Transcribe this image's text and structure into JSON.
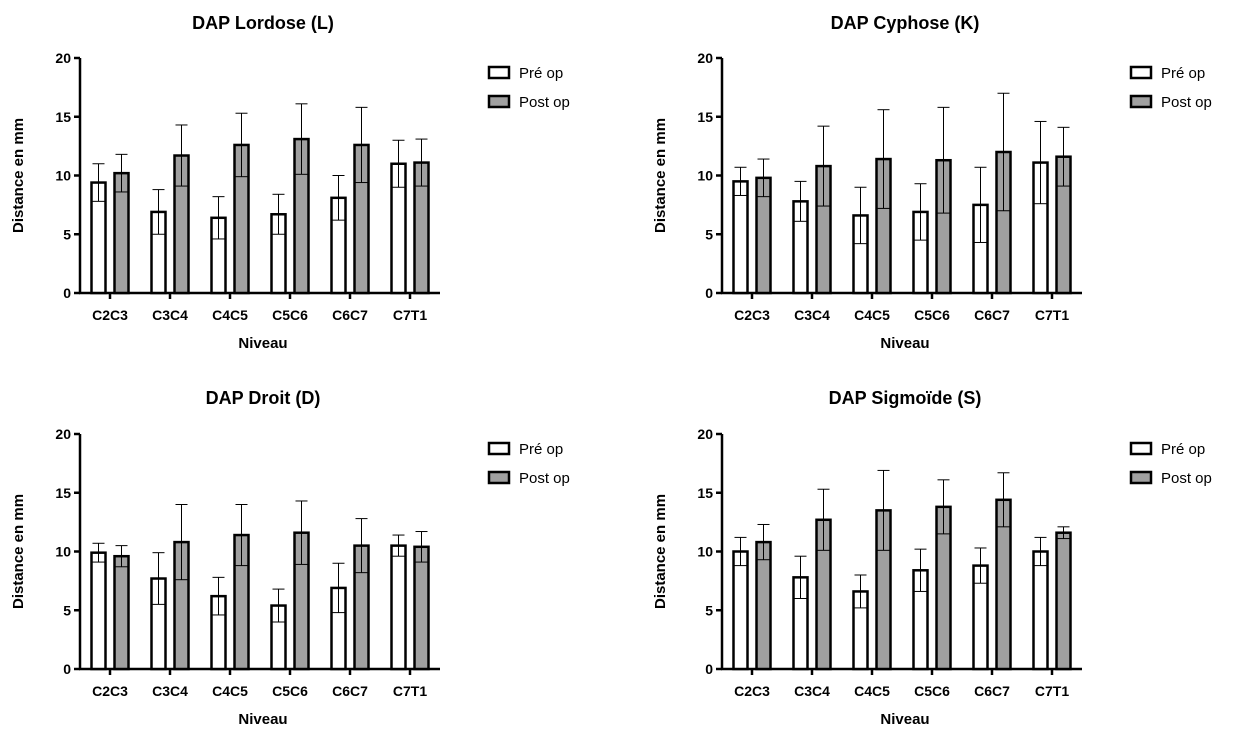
{
  "colors": {
    "pre": "#ffffff",
    "post": "#a0a0a0",
    "stroke": "#000000"
  },
  "chart_data": [
    {
      "type": "bar",
      "title": "DAP Lordose (L)",
      "xlabel": "Niveau",
      "ylabel": "Distance en mm",
      "ylim": [
        0,
        20
      ],
      "yticks": [
        "0",
        "5",
        "10",
        "15",
        "20"
      ],
      "categories": [
        "C2C3",
        "C3C4",
        "C4C5",
        "C5C6",
        "C6C7",
        "C7T1"
      ],
      "legend_position": "top-right",
      "series": [
        {
          "name": "Pré op",
          "values": [
            9.4,
            6.9,
            6.4,
            6.7,
            8.1,
            11.0
          ],
          "error": [
            1.6,
            1.9,
            1.8,
            1.7,
            1.9,
            2.0
          ]
        },
        {
          "name": "Post op",
          "values": [
            10.2,
            11.7,
            12.6,
            13.1,
            12.6,
            11.1
          ],
          "error": [
            1.6,
            2.6,
            2.7,
            3.0,
            3.2,
            2.0
          ]
        }
      ]
    },
    {
      "type": "bar",
      "title": "DAP Cyphose (K)",
      "xlabel": "Niveau",
      "ylabel": "Distance en mm",
      "ylim": [
        0,
        20
      ],
      "yticks": [
        "0",
        "5",
        "10",
        "15",
        "20"
      ],
      "categories": [
        "C2C3",
        "C3C4",
        "C4C5",
        "C5C6",
        "C6C7",
        "C7T1"
      ],
      "legend_position": "top-right",
      "series": [
        {
          "name": "Pré op",
          "values": [
            9.5,
            7.8,
            6.6,
            6.9,
            7.5,
            11.1
          ],
          "error": [
            1.2,
            1.7,
            2.4,
            2.4,
            3.2,
            3.5
          ]
        },
        {
          "name": "Post op",
          "values": [
            9.8,
            10.8,
            11.4,
            11.3,
            12.0,
            11.6
          ],
          "error": [
            1.6,
            3.4,
            4.2,
            4.5,
            5.0,
            2.5
          ]
        }
      ]
    },
    {
      "type": "bar",
      "title": "DAP Droit (D)",
      "xlabel": "Niveau",
      "ylabel": "Distance en mm",
      "ylim": [
        0,
        20
      ],
      "yticks": [
        "0",
        "5",
        "10",
        "15",
        "20"
      ],
      "categories": [
        "C2C3",
        "C3C4",
        "C4C5",
        "C5C6",
        "C6C7",
        "C7T1"
      ],
      "legend_position": "top-right",
      "series": [
        {
          "name": "Pré op",
          "values": [
            9.9,
            7.7,
            6.2,
            5.4,
            6.9,
            10.5
          ],
          "error": [
            0.8,
            2.2,
            1.6,
            1.4,
            2.1,
            0.9
          ]
        },
        {
          "name": "Post op",
          "values": [
            9.6,
            10.8,
            11.4,
            11.6,
            10.5,
            10.4
          ],
          "error": [
            0.9,
            3.2,
            2.6,
            2.7,
            2.3,
            1.3
          ]
        }
      ]
    },
    {
      "type": "bar",
      "title": "DAP Sigmoïde (S)",
      "xlabel": "Niveau",
      "ylabel": "Distance en mm",
      "ylim": [
        0,
        20
      ],
      "yticks": [
        "0",
        "5",
        "10",
        "15",
        "20"
      ],
      "categories": [
        "C2C3",
        "C3C4",
        "C4C5",
        "C5C6",
        "C6C7",
        "C7T1"
      ],
      "legend_position": "top-right",
      "series": [
        {
          "name": "Pré op",
          "values": [
            10.0,
            7.8,
            6.6,
            8.4,
            8.8,
            10.0
          ],
          "error": [
            1.2,
            1.8,
            1.4,
            1.8,
            1.5,
            1.2
          ]
        },
        {
          "name": "Post op",
          "values": [
            10.8,
            12.7,
            13.5,
            13.8,
            14.4,
            11.6
          ],
          "error": [
            1.5,
            2.6,
            3.4,
            2.3,
            2.3,
            0.5
          ]
        }
      ]
    }
  ]
}
